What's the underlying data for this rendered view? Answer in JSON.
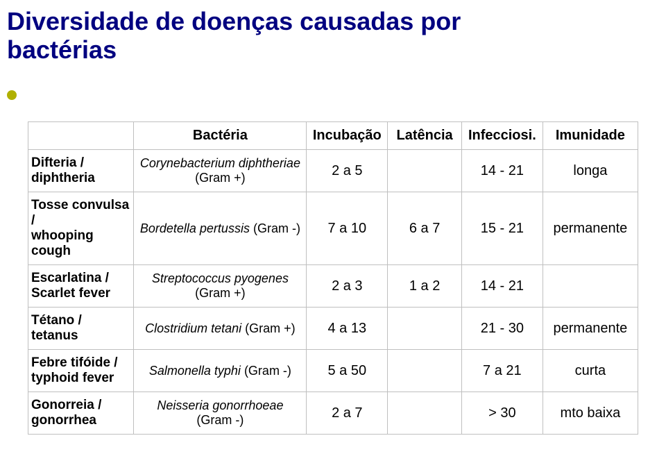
{
  "title_line1": "Diversidade de doenças causadas por",
  "title_line2": "bactérias",
  "table": {
    "headers": {
      "bacteria": "Bactéria",
      "incubation": "Incubação",
      "latency": "Latência",
      "infectiousness": "Infecciosi.",
      "immunity": "Imunidade"
    },
    "rows": [
      {
        "disease_line1": "Difteria /",
        "disease_line2": "diphtheria",
        "bacteria_line1": "Corynebacterium diphtheriae",
        "bacteria_line2": "(Gram +)",
        "incubation": "2 a 5",
        "latency": "",
        "infectiousness": "14 - 21",
        "immunity": "longa"
      },
      {
        "disease_line1": "Tosse convulsa /",
        "disease_line2": "whooping cough",
        "bacteria_line1": "Bordetella pertussis",
        "bacteria_gram_inline": " (Gram -)",
        "incubation": "7 a 10",
        "latency": "6 a 7",
        "infectiousness": "15 - 21",
        "immunity": "permanente"
      },
      {
        "disease_line1": "Escarlatina /",
        "disease_line2": "Scarlet fever",
        "bacteria_line1": "Streptococcus pyogenes",
        "bacteria_line2": "(Gram +)",
        "incubation": "2 a 3",
        "latency": "1 a 2",
        "infectiousness": "14 - 21",
        "immunity": ""
      },
      {
        "disease_line1": "Tétano / tetanus",
        "bacteria_line1": "Clostridium tetani",
        "bacteria_gram_inline": " (Gram +)",
        "incubation": "4 a 13",
        "latency": "",
        "infectiousness": "21 - 30",
        "immunity": "permanente"
      },
      {
        "disease_line1": "Febre tifóide /",
        "disease_line2": "typhoid fever",
        "bacteria_line1": "Salmonella typhi",
        "bacteria_gram_inline": " (Gram -)",
        "incubation": "5 a 50",
        "latency": "",
        "infectiousness": "7 a 21",
        "immunity": "curta"
      },
      {
        "disease_line1": "Gonorreia /",
        "disease_line2": "gonorrhea",
        "bacteria_line1": "Neisseria gonorrhoeae",
        "bacteria_line2": "(Gram -)",
        "incubation": "2 a 7",
        "latency": "",
        "infectiousness": "> 30",
        "immunity": "mto  baixa"
      }
    ]
  },
  "colors": {
    "title": "#000080",
    "bullet": "#b0b000",
    "border": "#bfbfbf",
    "text": "#000000",
    "background": "#ffffff"
  },
  "fonts": {
    "title_size_pt": 27,
    "header_size_pt": 15,
    "cell_size_pt": 15,
    "family": "Arial"
  }
}
